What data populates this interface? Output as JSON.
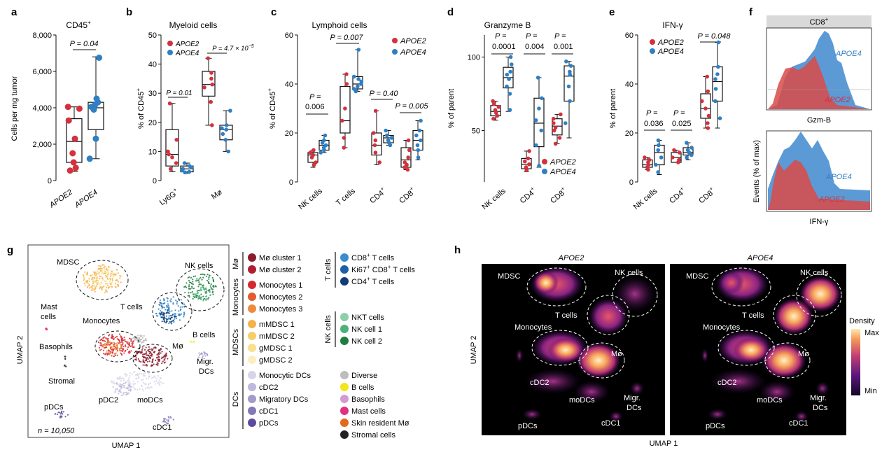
{
  "colors": {
    "apoe2": "#d3313d",
    "apoe4": "#2f7fc2",
    "box": "#111111",
    "umap_bg": "#000000",
    "apoe4_hist": "#4a8fd1",
    "apoe2_hist": "#d94a48"
  },
  "panels": {
    "a": {
      "letter": "a",
      "title": "CD45",
      "title_sup": "+",
      "ylabel": "Cells per mg tumor",
      "yticks": [
        "0",
        "2,000",
        "4,000",
        "6,000",
        "8,000"
      ],
      "xticks": [
        "APOE2",
        "APOE4"
      ],
      "pval": "P = 0.04"
    },
    "b": {
      "letter": "b",
      "title": "Myeloid cells",
      "ylabel": "% of CD45",
      "ylabel_sup": "+",
      "yticks": [
        "0",
        "10",
        "20",
        "30",
        "40",
        "50"
      ],
      "xticks": [
        "Ly6G",
        "Mø"
      ],
      "xtick1_sup": "+",
      "pvals": [
        "P = 0.01",
        "P = 4.7 × 10"
      ],
      "pval_exp": "−5",
      "legend": [
        "APOE2",
        "APOE4"
      ]
    },
    "c": {
      "letter": "c",
      "title": "Lymphoid cells",
      "ylabel": "% of CD45",
      "ylabel_sup": "+",
      "yticks": [
        "0",
        "20",
        "40",
        "60"
      ],
      "xticks": [
        "NK cells",
        "T cells",
        "CD4",
        "CD8"
      ],
      "xsup": "+",
      "pvals": [
        "P =",
        "0.006",
        "P = 0.007",
        "P = 0.40",
        "P = 0.005"
      ],
      "legend": [
        "APOE2",
        "APOE4"
      ]
    },
    "d": {
      "letter": "d",
      "title": "Granzyme B",
      "ylabel": "% of parent",
      "yticks": [
        "50",
        "100"
      ],
      "xticks": [
        "NK cells",
        "CD4",
        "CD8"
      ],
      "xsup": "+",
      "pvals": [
        "P =",
        "0.0001",
        "P =",
        "0.004",
        "P =",
        "0.001"
      ],
      "legend": [
        "APOE2",
        "APOE4"
      ]
    },
    "e": {
      "letter": "e",
      "title": "IFN-γ",
      "ylabel": "% of parent",
      "yticks": [
        "0",
        "20",
        "40",
        "60"
      ],
      "xticks": [
        "NK cells",
        "CD4",
        "CD8"
      ],
      "xsup": "+",
      "pvals": [
        "P =",
        "0.036",
        "P =",
        "0.025",
        "P = 0.048"
      ],
      "legend": [
        "APOE2",
        "APOE4"
      ]
    },
    "f": {
      "letter": "f",
      "strip": "CD8",
      "strip_sup": "+",
      "ylabel": "Events (% of max)",
      "xlabels": [
        "Gzm-B",
        "IFN-γ"
      ],
      "labels": [
        "APOE4",
        "APOE2"
      ]
    },
    "g": {
      "letter": "g",
      "xlabel": "UMAP 1",
      "ylabel": "UMAP 2",
      "n_label": "n = 10,050",
      "cluster_labels": [
        "MDSC",
        "NK cells",
        "T cells",
        "Mast",
        "cells",
        "Monocytes",
        "B cells",
        "Basophils",
        "Mø",
        "Migr.",
        "DCs",
        "Stromal",
        "pDCs",
        "pDC2",
        "moDCs",
        "cDC1"
      ],
      "legend_groups": [
        {
          "group": "Mø",
          "items": [
            {
              "label": "Mø cluster 1",
              "color": "#8b1c2b"
            },
            {
              "label": "Mø cluster 2",
              "color": "#b01e33"
            }
          ]
        },
        {
          "group": "Monocytes",
          "items": [
            {
              "label": "Monocytes 1",
              "color": "#d42a2f"
            },
            {
              "label": "Monocytes 2",
              "color": "#e35b2e"
            },
            {
              "label": "Monocytes 3",
              "color": "#ef8a3c"
            }
          ]
        },
        {
          "group": "MDSCs",
          "items": [
            {
              "label": "mMDSC 1",
              "color": "#f4b24a"
            },
            {
              "label": "mMDSC 2",
              "color": "#f6cd66"
            },
            {
              "label": "gMDSC 1",
              "color": "#f8e08e"
            },
            {
              "label": "gMDSC 2",
              "color": "#fbefbf"
            }
          ]
        },
        {
          "group": "DCs",
          "items": [
            {
              "label": "Monocytic DCs",
              "color": "#d6d4ea"
            },
            {
              "label": "cDC2",
              "color": "#bdb8dc"
            },
            {
              "label": "Migratory DCs",
              "color": "#a29bcc"
            },
            {
              "label": "cDC1",
              "color": "#8577b8"
            },
            {
              "label": "pDCs",
              "color": "#5e4ba0"
            }
          ]
        },
        {
          "group": "T cells",
          "items": [
            {
              "label": "CD8",
              "sup": "+",
              "after": " T cells",
              "color": "#3a8ccf"
            },
            {
              "label": "Ki67",
              "sup": "+",
              "after": " CD8",
              "sup2": "+",
              "after2": " T cells",
              "color": "#1f5fa8"
            },
            {
              "label": "CD4",
              "sup": "+",
              "after": " T cells",
              "color": "#123c78"
            }
          ]
        },
        {
          "group": "NK cells",
          "items": [
            {
              "label": "NKT cells",
              "color": "#8fcfa8"
            },
            {
              "label": "NK cell 1",
              "color": "#4fb07b"
            },
            {
              "label": "NK cell 2",
              "color": "#1f7d3f"
            }
          ]
        }
      ],
      "other_items": [
        {
          "label": "Diverse",
          "color": "#bdbdbd"
        },
        {
          "label": "B cells",
          "color": "#f2e51c"
        },
        {
          "label": "Basophils",
          "color": "#d49ad2"
        },
        {
          "label": "Mast cells",
          "color": "#e0307f"
        },
        {
          "label": "Skin resident Mø",
          "color": "#e2691c"
        },
        {
          "label": "Stromal cells",
          "color": "#222222"
        }
      ]
    },
    "h": {
      "letter": "h",
      "titles": [
        "APOE2",
        "APOE4"
      ],
      "xlabel": "UMAP 1",
      "ylabel": "UMAP 2",
      "cluster_labels": [
        "MDSC",
        "NK cells",
        "T cells",
        "Monocytes",
        "Mø",
        "cDC2",
        "moDCs",
        "Migr.",
        "DCs",
        "pDCs",
        "cDC1"
      ],
      "colorbar": {
        "title": "Density",
        "max": "Max",
        "min": "Min"
      }
    }
  },
  "chart_data": [
    {
      "panel": "a",
      "type": "box",
      "title": "CD45+",
      "ylabel": "Cells per mg tumor",
      "ylim": [
        0,
        8000
      ],
      "groups": [
        {
          "name": "APOE2",
          "color": "apoe2",
          "min": 500,
          "q1": 1000,
          "median": 2150,
          "q3": 3400,
          "max": 4050,
          "points": [
            4050,
            3950,
            3300,
            2300,
            1500,
            1000,
            700,
            550
          ]
        },
        {
          "name": "APOE4",
          "color": "apoe4",
          "min": 1200,
          "q1": 2800,
          "median": 4000,
          "q3": 4300,
          "max": 6800,
          "points": [
            6750,
            4500,
            4300,
            4150,
            4050,
            3900,
            2300,
            1200
          ]
        }
      ]
    },
    {
      "panel": "b",
      "type": "box",
      "title": "Myeloid cells",
      "ylabel": "% of CD45+",
      "ylim": [
        0,
        50
      ],
      "categories": [
        "Ly6G+",
        "Mø"
      ],
      "groups": [
        {
          "category": 0,
          "name": "APOE2",
          "color": "apoe2",
          "min": 3,
          "q1": 5,
          "median": 9,
          "q3": 17.5,
          "max": 26.5,
          "points": [
            26.5,
            14,
            10,
            9,
            8,
            6,
            4
          ]
        },
        {
          "category": 0,
          "name": "APOE4",
          "color": "apoe4",
          "min": 2.5,
          "q1": 3,
          "median": 4,
          "q3": 5,
          "max": 6,
          "points": [
            6,
            5,
            4.5,
            4,
            3.5,
            3,
            2.8
          ]
        },
        {
          "category": 1,
          "name": "APOE2",
          "color": "apoe2",
          "min": 19,
          "q1": 29,
          "median": 33,
          "q3": 37.5,
          "max": 42,
          "points": [
            42,
            37,
            35,
            33,
            32,
            27,
            19
          ]
        },
        {
          "category": 1,
          "name": "APOE4",
          "color": "apoe4",
          "min": 10,
          "q1": 14,
          "median": 17.5,
          "q3": 19,
          "max": 24,
          "points": [
            24,
            19,
            18,
            17.5,
            16,
            14,
            10
          ]
        }
      ]
    },
    {
      "panel": "c",
      "type": "box",
      "title": "Lymphoid cells",
      "ylabel": "% of CD45+",
      "ylim": [
        0,
        60
      ],
      "categories": [
        "NK cells",
        "T cells",
        "CD4+",
        "CD8+"
      ],
      "groups": [
        {
          "category": 0,
          "name": "APOE2",
          "color": "apoe2",
          "min": 6,
          "q1": 8,
          "median": 11,
          "q3": 12,
          "max": 13,
          "points": [
            13,
            12,
            11,
            10,
            8,
            7
          ]
        },
        {
          "category": 0,
          "name": "APOE4",
          "color": "apoe4",
          "min": 12,
          "q1": 13,
          "median": 15,
          "q3": 17,
          "max": 19,
          "points": [
            19,
            17,
            16,
            15,
            14,
            13,
            12
          ]
        },
        {
          "category": 1,
          "name": "APOE2",
          "color": "apoe2",
          "min": 14,
          "q1": 20,
          "median": 25,
          "q3": 39,
          "max": 44,
          "points": [
            44,
            40,
            30,
            25,
            18,
            14
          ]
        },
        {
          "category": 1,
          "name": "APOE4",
          "color": "apoe4",
          "min": 37,
          "q1": 38,
          "median": 40,
          "q3": 43,
          "max": 54,
          "points": [
            54,
            43,
            42,
            41,
            40,
            39,
            38,
            37
          ]
        },
        {
          "category": 2,
          "name": "APOE2",
          "color": "apoe2",
          "min": 7,
          "q1": 11,
          "median": 15,
          "q3": 20,
          "max": 29,
          "points": [
            29,
            20,
            17,
            15,
            12,
            8
          ]
        },
        {
          "category": 2,
          "name": "APOE4",
          "color": "apoe4",
          "min": 15,
          "q1": 16,
          "median": 18,
          "q3": 19,
          "max": 21,
          "points": [
            21,
            19,
            18,
            17,
            16,
            15
          ]
        },
        {
          "category": 3,
          "name": "APOE2",
          "color": "apoe2",
          "min": 5,
          "q1": 6,
          "median": 9,
          "q3": 14,
          "max": 17,
          "points": [
            17,
            13,
            10,
            8,
            7,
            6,
            5
          ]
        },
        {
          "category": 3,
          "name": "APOE4",
          "color": "apoe4",
          "min": 9,
          "q1": 13,
          "median": 17,
          "q3": 21,
          "max": 25,
          "points": [
            25,
            21,
            19,
            17,
            15,
            13,
            10
          ]
        }
      ]
    },
    {
      "panel": "d",
      "type": "box",
      "title": "Granzyme B",
      "ylabel": "% of parent",
      "ylim": [
        15,
        115
      ],
      "categories": [
        "NK cells",
        "CD4+",
        "CD8+"
      ],
      "groups": [
        {
          "category": 0,
          "name": "APOE2",
          "color": "apoe2",
          "min": 57,
          "q1": 60,
          "median": 63,
          "q3": 67,
          "max": 70,
          "points": [
            70,
            68,
            66,
            64,
            62,
            60,
            58
          ]
        },
        {
          "category": 0,
          "name": "APOE4",
          "color": "apoe4",
          "min": 63,
          "q1": 79,
          "median": 86,
          "q3": 93,
          "max": 100,
          "points": [
            100,
            95,
            90,
            88,
            85,
            80,
            75,
            64
          ]
        },
        {
          "category": 1,
          "name": "APOE2",
          "color": "apoe2",
          "min": 22,
          "q1": 24,
          "median": 27,
          "q3": 31,
          "max": 36,
          "points": [
            36,
            31,
            29,
            27,
            25,
            23
          ]
        },
        {
          "category": 1,
          "name": "APOE4",
          "color": "apoe4",
          "min": 25,
          "q1": 39,
          "median": 55,
          "q3": 72,
          "max": 86,
          "points": [
            86,
            72,
            65,
            57,
            50,
            40,
            26
          ]
        },
        {
          "category": 2,
          "name": "APOE2",
          "color": "apoe2",
          "min": 41,
          "q1": 47,
          "median": 53,
          "q3": 58,
          "max": 61,
          "points": [
            61,
            58,
            55,
            52,
            50,
            45,
            41
          ]
        },
        {
          "category": 2,
          "name": "APOE4",
          "color": "apoe4",
          "min": 45,
          "q1": 70,
          "median": 87,
          "q3": 94,
          "max": 97,
          "points": [
            97,
            94,
            90,
            88,
            80,
            70,
            55
          ]
        }
      ]
    },
    {
      "panel": "e",
      "type": "box",
      "title": "IFN-γ",
      "ylabel": "% of parent",
      "ylim": [
        0,
        60
      ],
      "categories": [
        "NK cells",
        "CD4+",
        "CD8+"
      ],
      "groups": [
        {
          "category": 0,
          "name": "APOE2",
          "color": "apoe2",
          "min": 5,
          "q1": 6,
          "median": 7,
          "q3": 9,
          "max": 10,
          "points": [
            10,
            9,
            8,
            7,
            6,
            5
          ]
        },
        {
          "category": 0,
          "name": "APOE4",
          "color": "apoe4",
          "min": 3,
          "q1": 7,
          "median": 12,
          "q3": 15,
          "max": 17,
          "points": [
            17,
            15,
            13,
            10,
            7,
            4
          ]
        },
        {
          "category": 1,
          "name": "APOE2",
          "color": "apoe2",
          "min": 8,
          "q1": 8,
          "median": 10,
          "q3": 12,
          "max": 13,
          "points": [
            13,
            12,
            10,
            9,
            8
          ]
        },
        {
          "category": 1,
          "name": "APOE4",
          "color": "apoe4",
          "min": 9,
          "q1": 11,
          "median": 12,
          "q3": 14,
          "max": 16,
          "points": [
            16,
            14,
            13,
            12,
            11,
            10
          ]
        },
        {
          "category": 2,
          "name": "APOE2",
          "color": "apoe2",
          "min": 22,
          "q1": 26,
          "median": 30,
          "q3": 36,
          "max": 43,
          "points": [
            43,
            37,
            33,
            30,
            27,
            24,
            22
          ]
        },
        {
          "category": 2,
          "name": "APOE4",
          "color": "apoe4",
          "min": 22,
          "q1": 33,
          "median": 41,
          "q3": 47,
          "max": 57,
          "points": [
            57,
            47,
            44,
            42,
            38,
            33,
            26
          ]
        }
      ]
    }
  ]
}
